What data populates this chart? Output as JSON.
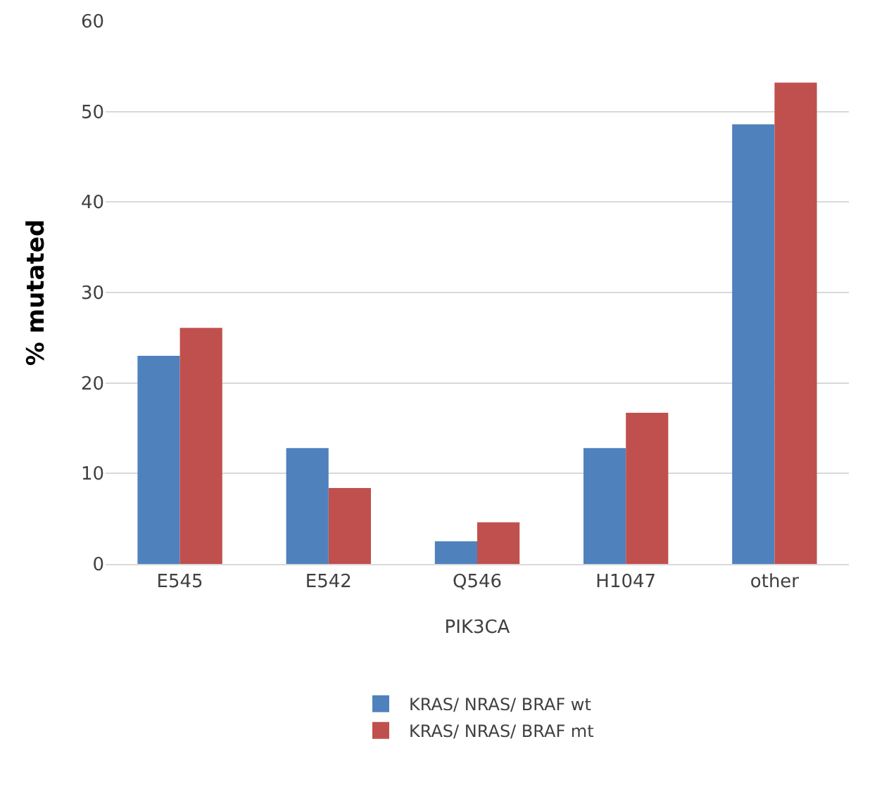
{
  "chart_data": {
    "type": "bar",
    "xlabel": "PIK3CA",
    "ylabel": "% mutated",
    "categories": [
      "E545",
      "E542",
      "Q546",
      "H1047",
      "other"
    ],
    "series": [
      {
        "name": "KRAS/ NRAS/ BRAF wt",
        "color": "#4f81bd",
        "values": [
          23,
          12.8,
          2.5,
          12.8,
          48.6
        ]
      },
      {
        "name": "KRAS/ NRAS/ BRAF mt",
        "color": "#c0504d",
        "values": [
          26.1,
          8.4,
          4.6,
          16.7,
          53.2
        ]
      }
    ],
    "ylim": [
      0,
      60
    ],
    "yticks": [
      0,
      10,
      20,
      30,
      40,
      50,
      60
    ],
    "grid": "y",
    "legend": "bottom"
  }
}
